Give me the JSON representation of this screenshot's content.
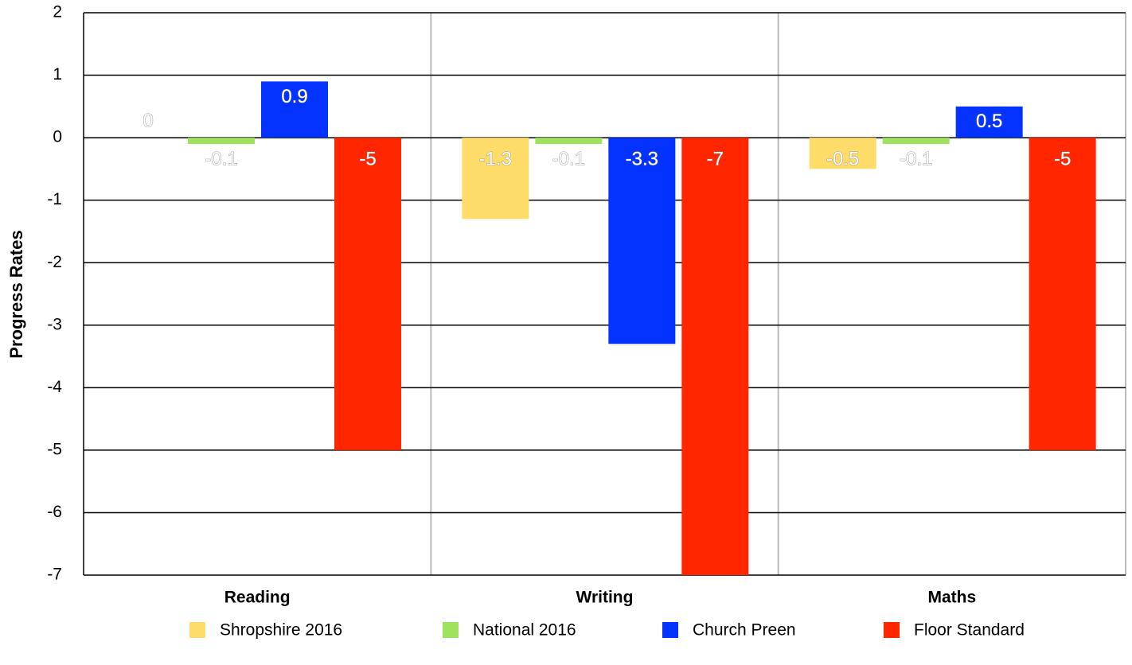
{
  "chart_data": {
    "type": "bar",
    "y_axis_label": "Progress Rates",
    "categories": [
      "Reading",
      "Writing",
      "Maths"
    ],
    "series": [
      {
        "name": "Shropshire 2016",
        "color": "#fedc6a",
        "values": [
          0,
          -1.3,
          -0.5
        ]
      },
      {
        "name": "National 2016",
        "color": "#9ee35e",
        "values": [
          -0.1,
          -0.1,
          -0.1
        ]
      },
      {
        "name": "Church Preen",
        "color": "#0433ff",
        "values": [
          0.9,
          -3.3,
          0.5
        ]
      },
      {
        "name": "Floor Standard",
        "color": "#ff2600",
        "values": [
          -5,
          -7,
          -5
        ]
      }
    ],
    "ylim": [
      -7,
      2
    ],
    "yticks": [
      -7,
      -6,
      -5,
      -4,
      -3,
      -2,
      -1,
      0,
      1,
      2
    ],
    "grid": true,
    "legend": "bottom"
  }
}
